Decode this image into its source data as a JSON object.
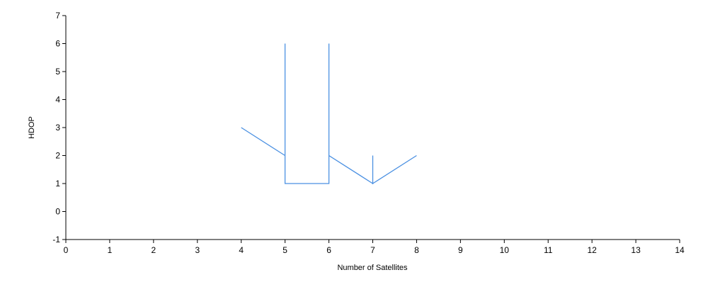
{
  "chart_data": {
    "type": "line",
    "title": "",
    "xlabel": "Number of Satellites",
    "ylabel": "HDOP",
    "xlim": [
      0,
      14
    ],
    "ylim": [
      -1,
      7
    ],
    "x_ticks": [
      "0",
      "1",
      "2",
      "3",
      "4",
      "5",
      "6",
      "7",
      "8",
      "9",
      "10",
      "11",
      "12",
      "13",
      "14"
    ],
    "y_ticks": [
      "-1",
      "0",
      "1",
      "2",
      "3",
      "4",
      "5",
      "6",
      "7"
    ],
    "grid": false,
    "legend": "none",
    "series": [
      {
        "color": "#4a90e2",
        "points": [
          [
            4,
            3
          ],
          [
            5,
            2
          ],
          [
            5,
            6
          ],
          [
            5,
            1
          ],
          [
            6,
            1
          ],
          [
            6,
            6
          ],
          [
            6,
            2
          ],
          [
            7,
            1
          ],
          [
            7,
            2
          ],
          [
            7,
            1
          ],
          [
            8,
            2
          ]
        ]
      }
    ]
  }
}
